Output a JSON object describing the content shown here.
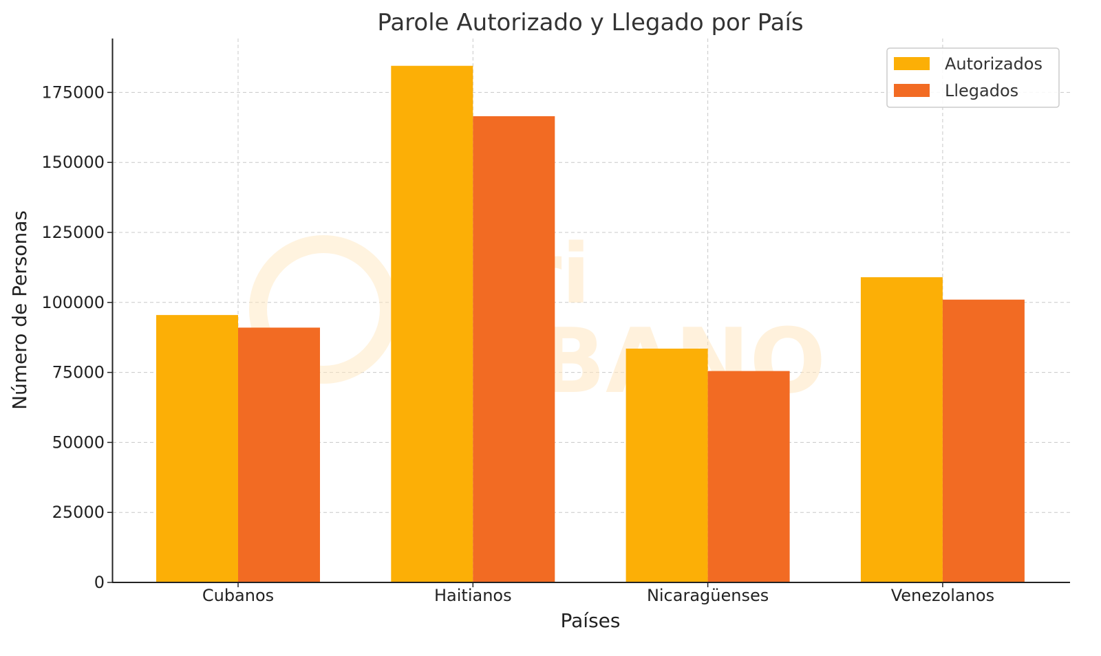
{
  "chart_data": {
    "type": "bar",
    "title": "Parole Autorizado y Llegado por País",
    "xlabel": "Países",
    "ylabel": "Número de Personas",
    "categories": [
      "Cubanos",
      "Haitianos",
      "Nicaragüenses",
      "Venezolanos"
    ],
    "series": [
      {
        "name": "Autorizados",
        "color": "#FCAF06",
        "values": [
          95500,
          184500,
          83500,
          109000
        ]
      },
      {
        "name": "Llegados",
        "color": "#F26B23",
        "values": [
          91000,
          166500,
          75500,
          101000
        ]
      }
    ],
    "ylim": [
      0,
      194000
    ],
    "yticks": [
      0,
      25000,
      50000,
      75000,
      100000,
      125000,
      150000,
      175000
    ],
    "grid": true,
    "legend_position": "top-right",
    "watermark": "periódico CUBANO"
  }
}
